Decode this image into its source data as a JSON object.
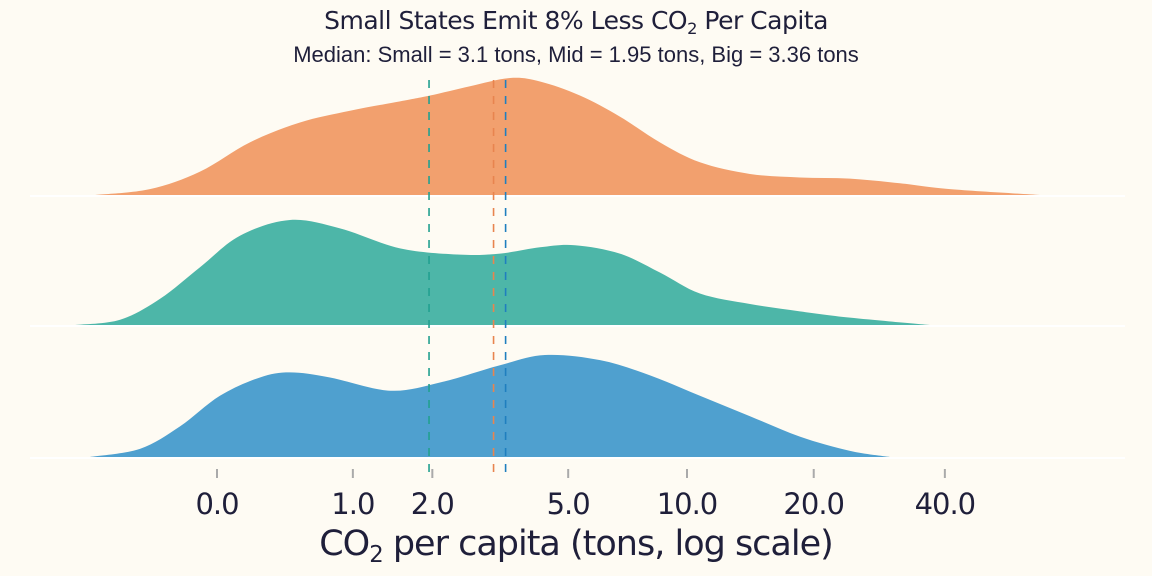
{
  "chart_data": {
    "type": "ridgeline",
    "title": "Small States Emit 8% Less CO",
    "title_sub": "2",
    "title_end": " Per Capita",
    "subtitle": "Median: Small = 3.1 tons, Mid = 1.95 tons, Big = 3.36 tons",
    "xlabel_pre": "CO",
    "xlabel_sub": "2",
    "xlabel_post": " per capita (tons, log scale)",
    "x_scale": "log1p",
    "x_ticks": [
      0,
      1,
      2,
      5,
      10,
      20,
      40
    ],
    "x_tick_labels": [
      "0.0",
      "1.0",
      "2.0",
      "5.0",
      "10.0",
      "20.0",
      "40.0"
    ],
    "grid": false,
    "series": [
      {
        "group": "Small",
        "color": "#F2A06E",
        "median": 3.1,
        "median_color": "#E8844F",
        "x": [
          -0.463,
          -0.29,
          -0.083,
          0.183,
          0.527,
          0.971,
          1.544,
          1.964,
          2.636,
          3.459,
          4.196,
          5.37,
          6.81,
          8.58,
          10.75,
          14.17,
          18.57,
          24.27,
          31.6,
          41.1,
          65.6
        ],
        "density": [
          0,
          0.05,
          0.2,
          0.45,
          0.62,
          0.72,
          0.8,
          0.85,
          0.93,
          1.0,
          0.97,
          0.85,
          0.67,
          0.45,
          0.28,
          0.18,
          0.15,
          0.14,
          0.1,
          0.05,
          0
        ]
      },
      {
        "group": "Mid",
        "color": "#4DB6A8",
        "median": 1.95,
        "median_color": "#22A090",
        "x": [
          -0.515,
          -0.39,
          -0.252,
          -0.083,
          0.124,
          0.451,
          0.873,
          1.544,
          2.455,
          3.237,
          4.196,
          5.21,
          6.81,
          8.58,
          10.75,
          14.17,
          18.57,
          24.27,
          37.0
        ],
        "density": [
          0,
          0.05,
          0.25,
          0.55,
          0.85,
          1.0,
          0.92,
          0.73,
          0.67,
          0.68,
          0.74,
          0.76,
          0.68,
          0.5,
          0.3,
          0.2,
          0.13,
          0.07,
          0
        ]
      },
      {
        "group": "Big",
        "color": "#4FA0CF",
        "median": 3.36,
        "median_color": "#1F7FBF",
        "x": [
          -0.477,
          -0.325,
          -0.172,
          0.015,
          0.245,
          0.451,
          0.78,
          1.418,
          2.119,
          3.237,
          4.33,
          6.06,
          8.11,
          10.75,
          14.17,
          18.57,
          24.27,
          30.0
        ],
        "density": [
          0,
          0.08,
          0.3,
          0.6,
          0.78,
          0.83,
          0.78,
          0.65,
          0.73,
          0.9,
          1.0,
          0.95,
          0.8,
          0.6,
          0.4,
          0.2,
          0.06,
          0
        ]
      }
    ]
  }
}
